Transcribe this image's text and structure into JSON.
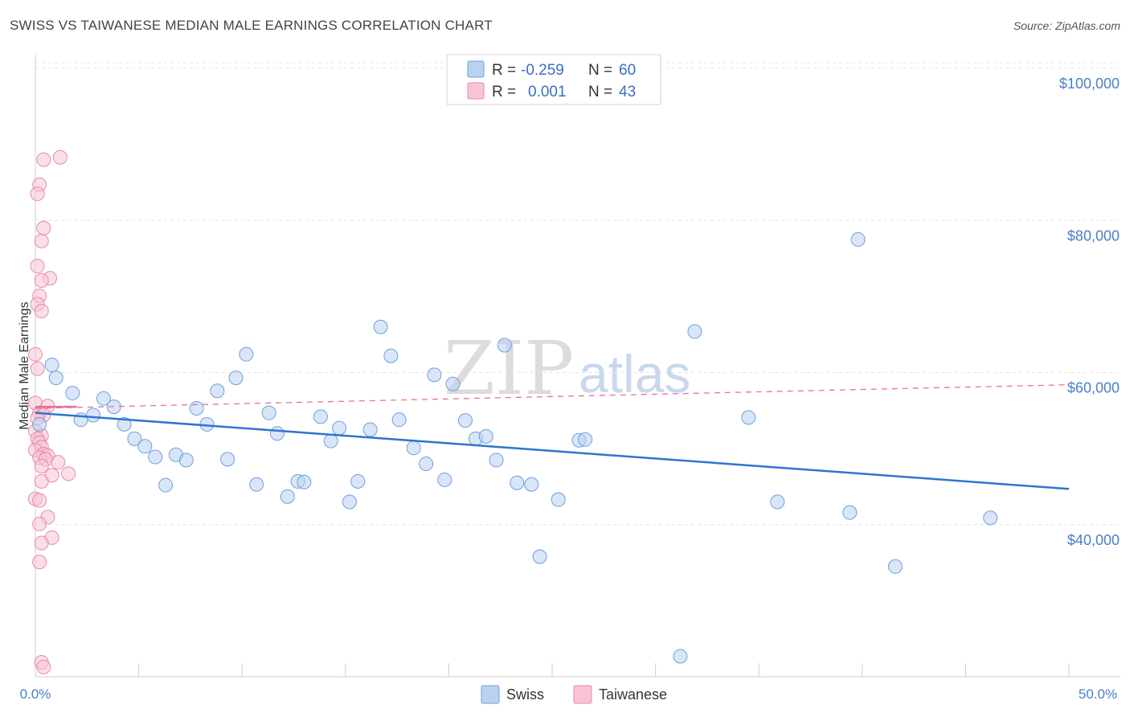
{
  "header": {
    "title": "SWISS VS TAIWANESE MEDIAN MALE EARNINGS CORRELATION CHART",
    "source": "Source: ZipAtlas.com"
  },
  "watermark": {
    "zip": "ZIP",
    "atlas": "atlas"
  },
  "legend": {
    "rows": [
      {
        "r_label": "R =",
        "r_value": "-0.259",
        "n_label": "N =",
        "n_value": "60"
      },
      {
        "r_label": "R =",
        "r_value": "0.001",
        "n_label": "N =",
        "n_value": "43"
      }
    ]
  },
  "bottom_legend": {
    "swiss": "Swiss",
    "taiwanese": "Taiwanese"
  },
  "colors": {
    "swiss_fill": "#b9d2f2",
    "swiss_stroke": "#6f9fdc",
    "swiss_line": "#2f74d0",
    "taiwanese_fill": "#f8c4d4",
    "taiwanese_stroke": "#e88aa8",
    "taiwanese_line": "#e8709a"
  },
  "chart_data": {
    "type": "scatter",
    "title": "SWISS VS TAIWANESE MEDIAN MALE EARNINGS CORRELATION CHART",
    "ylabel": "Median Male Earnings",
    "xlabel": "",
    "x_tick_labels": [
      "0.0%",
      "50.0%"
    ],
    "y_tick_labels": [
      "$40,000",
      "$60,000",
      "$80,000",
      "$100,000"
    ],
    "y_ticks": [
      40000,
      60000,
      80000,
      100000
    ],
    "xlim": [
      0,
      50
    ],
    "ylim": [
      20000,
      101800
    ],
    "grid": true,
    "legend_position": "top-center",
    "series": [
      {
        "name": "Swiss",
        "r": -0.259,
        "n": 60,
        "trend": {
          "x": [
            0,
            50
          ],
          "y": [
            54700,
            44700
          ]
        },
        "points": [
          [
            0.2,
            53200
          ],
          [
            0.8,
            61000
          ],
          [
            1.0,
            59300
          ],
          [
            1.8,
            57300
          ],
          [
            2.2,
            53800
          ],
          [
            2.8,
            54400
          ],
          [
            3.3,
            56600
          ],
          [
            3.8,
            55500
          ],
          [
            4.3,
            53200
          ],
          [
            4.8,
            51300
          ],
          [
            5.3,
            50300
          ],
          [
            5.8,
            48900
          ],
          [
            6.3,
            45200
          ],
          [
            6.8,
            49200
          ],
          [
            7.3,
            48500
          ],
          [
            7.8,
            55300
          ],
          [
            8.3,
            53200
          ],
          [
            8.8,
            57600
          ],
          [
            9.3,
            48600
          ],
          [
            9.7,
            59300
          ],
          [
            10.2,
            62400
          ],
          [
            10.7,
            45300
          ],
          [
            11.3,
            54700
          ],
          [
            11.7,
            52000
          ],
          [
            12.2,
            43700
          ],
          [
            12.7,
            45700
          ],
          [
            13.0,
            45600
          ],
          [
            13.8,
            54200
          ],
          [
            14.3,
            51000
          ],
          [
            14.7,
            52700
          ],
          [
            15.2,
            43000
          ],
          [
            15.6,
            45700
          ],
          [
            16.2,
            52500
          ],
          [
            16.7,
            66000
          ],
          [
            17.2,
            62200
          ],
          [
            17.6,
            53800
          ],
          [
            18.3,
            50100
          ],
          [
            18.9,
            48000
          ],
          [
            19.3,
            59700
          ],
          [
            19.8,
            45900
          ],
          [
            20.2,
            58500
          ],
          [
            20.8,
            53700
          ],
          [
            21.3,
            51300
          ],
          [
            21.8,
            51600
          ],
          [
            22.3,
            48500
          ],
          [
            22.7,
            63600
          ],
          [
            23.3,
            45500
          ],
          [
            24.0,
            45300
          ],
          [
            24.4,
            35800
          ],
          [
            25.3,
            43300
          ],
          [
            26.3,
            51100
          ],
          [
            26.6,
            51200
          ],
          [
            31.2,
            22700
          ],
          [
            31.9,
            65400
          ],
          [
            34.5,
            54100
          ],
          [
            35.9,
            43000
          ],
          [
            39.4,
            41600
          ],
          [
            39.8,
            77500
          ],
          [
            41.6,
            34500
          ],
          [
            46.2,
            40900
          ]
        ]
      },
      {
        "name": "Taiwanese",
        "r": 0.001,
        "n": 43,
        "trend_solid": {
          "x": [
            0,
            2.0
          ],
          "y": [
            55500,
            55500
          ]
        },
        "trend_dashed": {
          "x": [
            0,
            50
          ],
          "y": [
            55300,
            58400
          ]
        },
        "points": [
          [
            0.4,
            88000
          ],
          [
            1.2,
            88300
          ],
          [
            0.2,
            84700
          ],
          [
            0.1,
            83500
          ],
          [
            0.4,
            79000
          ],
          [
            0.3,
            77300
          ],
          [
            0.1,
            74000
          ],
          [
            0.7,
            72400
          ],
          [
            0.3,
            72100
          ],
          [
            0.2,
            70100
          ],
          [
            0.1,
            69000
          ],
          [
            0.3,
            68100
          ],
          [
            0.0,
            62400
          ],
          [
            0.1,
            60500
          ],
          [
            0.0,
            56000
          ],
          [
            0.6,
            55600
          ],
          [
            0.2,
            54700
          ],
          [
            0.4,
            54400
          ],
          [
            0.1,
            54000
          ],
          [
            0.0,
            52300
          ],
          [
            0.3,
            51700
          ],
          [
            0.1,
            51300
          ],
          [
            0.2,
            50800
          ],
          [
            0.3,
            50200
          ],
          [
            0.0,
            49800
          ],
          [
            0.4,
            49300
          ],
          [
            0.6,
            49100
          ],
          [
            0.2,
            48800
          ],
          [
            0.5,
            48600
          ],
          [
            1.1,
            48200
          ],
          [
            0.3,
            47700
          ],
          [
            0.8,
            46500
          ],
          [
            1.6,
            46700
          ],
          [
            0.3,
            45700
          ],
          [
            0.0,
            43400
          ],
          [
            0.2,
            43200
          ],
          [
            0.6,
            41000
          ],
          [
            0.2,
            40100
          ],
          [
            0.8,
            38300
          ],
          [
            0.3,
            37600
          ],
          [
            0.2,
            35100
          ],
          [
            0.3,
            21900
          ],
          [
            0.4,
            21300
          ]
        ]
      }
    ]
  }
}
